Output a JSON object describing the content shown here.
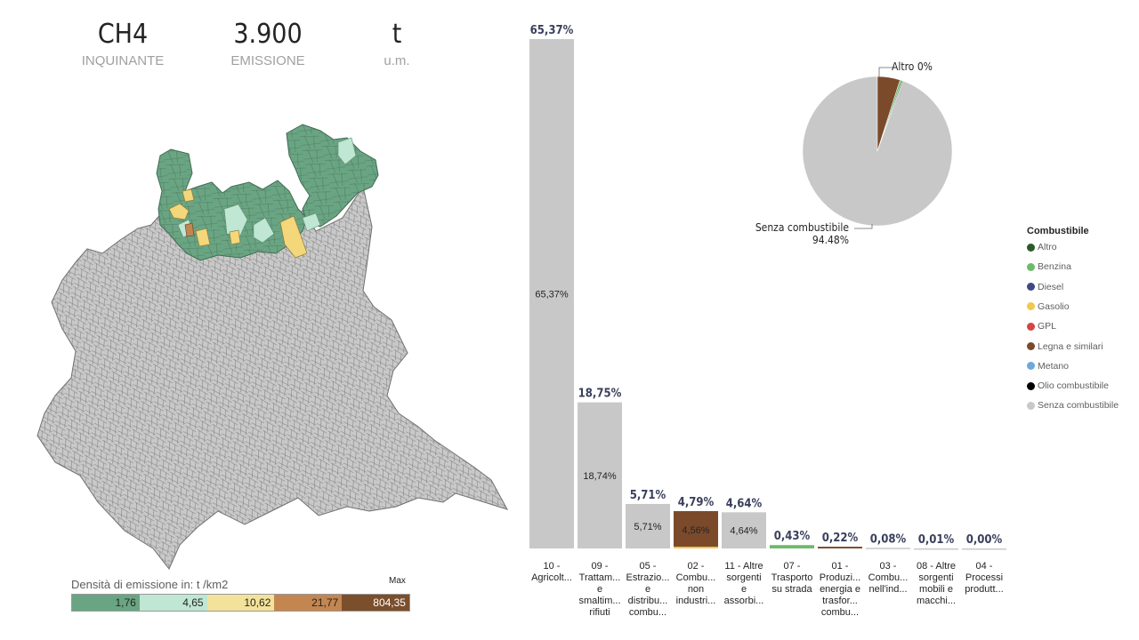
{
  "kpis": [
    {
      "value": "CH4",
      "label": "INQUINANTE"
    },
    {
      "value": "3.900",
      "label": "EMISSIONE"
    },
    {
      "value": "t",
      "label": "u.m."
    }
  ],
  "map_legend": {
    "title": "Densità di emissione in:  t /km2",
    "max_label": "Max",
    "bins": [
      {
        "value": "1,76",
        "color": "#6aa583"
      },
      {
        "value": "4,65",
        "color": "#bfe7d3"
      },
      {
        "value": "10,62",
        "color": "#f3e29a"
      },
      {
        "value": "21,77",
        "color": "#c38651"
      },
      {
        "value": "804,35",
        "color": "#7b4e2c"
      }
    ]
  },
  "chart_data": [
    {
      "type": "bar",
      "categories": [
        "10 - Agricolt...",
        "09 - Trattam... e smaltim... rifiuti",
        "05 - Estrazio... e distribu... combu...",
        "02 - Combu... non industri...",
        "11 - Altre sorgenti e assorbi...",
        "07 - Trasporto su strada",
        "01 - Produzi... energia e trasfor... combu...",
        "03 - Combu... nell'ind...",
        "08 - Altre sorgenti mobili e macchi...",
        "04 - Processi produtt..."
      ],
      "category_lines": [
        [
          "10 -",
          "Agricolt..."
        ],
        [
          "09 -",
          "Trattam...",
          "e",
          "smaltim...",
          "rifiuti"
        ],
        [
          "05 -",
          "Estrazio...",
          "e",
          "distribu...",
          "combu..."
        ],
        [
          "02 -",
          "Combu...",
          "non",
          "industri..."
        ],
        [
          "11 - Altre",
          "sorgenti",
          "e",
          "assorbi..."
        ],
        [
          "07 -",
          "Trasporto",
          "su strada"
        ],
        [
          "01 -",
          "Produzi...",
          "energia e",
          "trasfor...",
          "combu..."
        ],
        [
          "03 -",
          "Combu...",
          "nell'ind..."
        ],
        [
          "08 - Altre",
          "sorgenti",
          "mobili e",
          "macchi..."
        ],
        [
          "04 -",
          "Processi",
          "produtt..."
        ]
      ],
      "values": [
        65.37,
        18.75,
        5.71,
        4.79,
        4.64,
        0.43,
        0.22,
        0.08,
        0.01,
        0.0
      ],
      "top_labels": [
        "65,37%",
        "18,75%",
        "5,71%",
        "4,79%",
        "4,64%",
        "0,43%",
        "0,22%",
        "0,08%",
        "0,01%",
        "0,00%"
      ],
      "inner_labels": [
        "65,37%",
        "18,74%",
        "5,71%",
        "4,56%",
        "4,64%",
        "",
        "",
        "",
        "",
        ""
      ],
      "dominant_color": [
        "#c8c8c8",
        "#c8c8c8",
        "#c8c8c8",
        "#7b4a2b",
        "#c8c8c8",
        "#6dbb6a",
        "#7b4a2b",
        "#c8c8c8",
        "#c8c8c8",
        "#c8c8c8"
      ],
      "ylim": [
        0,
        65.37
      ]
    },
    {
      "type": "pie",
      "slices": [
        {
          "name": "Senza combustibile",
          "value": 94.48,
          "color": "#c8c8c8"
        },
        {
          "name": "Legna e similari",
          "value": 4.9,
          "color": "#7b4a2b"
        },
        {
          "name": "Benzina",
          "value": 0.4,
          "color": "#6dbb6a"
        },
        {
          "name": "Altro",
          "value": 0.22,
          "color": "#2f5b2a"
        }
      ],
      "labels": [
        {
          "text": "Altro 0%"
        },
        {
          "text": "Senza combustibile",
          "text2": "94.48%"
        }
      ]
    }
  ],
  "fuel_legend": {
    "title": "Combustibile",
    "items": [
      {
        "name": "Altro",
        "color": "#2b5a2a"
      },
      {
        "name": "Benzina",
        "color": "#6dbb6a"
      },
      {
        "name": "Diesel",
        "color": "#3d4a86"
      },
      {
        "name": "Gasolio",
        "color": "#efc84e"
      },
      {
        "name": "GPL",
        "color": "#d64545"
      },
      {
        "name": "Legna e similari",
        "color": "#7b4a2b"
      },
      {
        "name": "Metano",
        "color": "#6fa8dc"
      },
      {
        "name": "Olio combustibile",
        "color": "#000000"
      },
      {
        "name": "Senza combustibile",
        "color": "#c8c8c8"
      }
    ]
  }
}
